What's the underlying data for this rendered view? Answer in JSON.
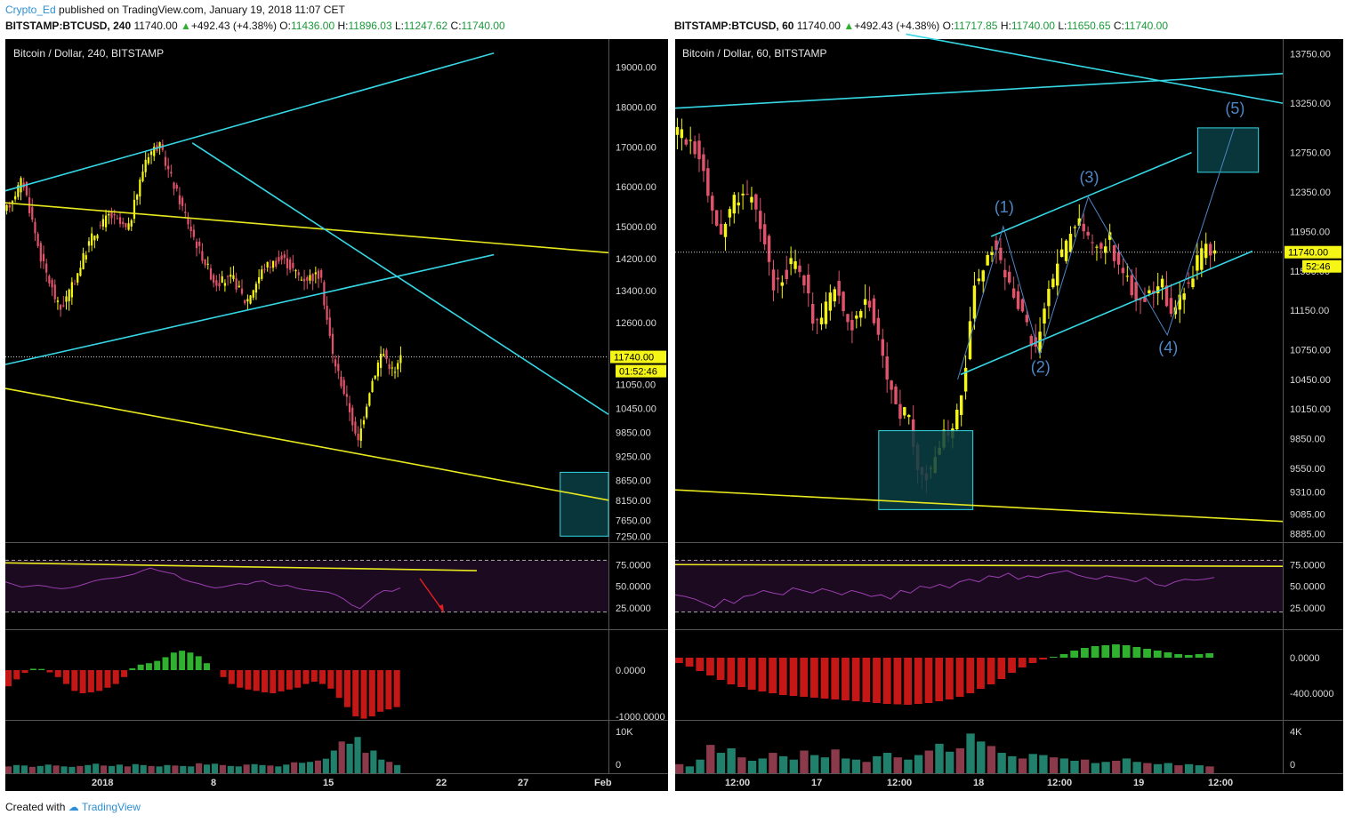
{
  "header": {
    "author": "Crypto_Ed",
    "published": "published on TradingView.com, January 19, 2018 11:07 CET"
  },
  "left": {
    "symbol": "BITSTAMP:BTCUSD, 240",
    "price": "11740.00",
    "change": "+492.43 (+4.38%)",
    "o_label": "O:",
    "o": "11436.00",
    "h_label": "H:",
    "h": "11896.03",
    "l_label": "L:",
    "l": "11247.62",
    "c_label": "C:",
    "c": "11740.00",
    "title": "Bitcoin / Dollar, 240, BITSTAMP",
    "price_tag": "11740.00",
    "timer_tag": "01:52:46",
    "price_ticks": [
      "19000.00",
      "18000.00",
      "17000.00",
      "16000.00",
      "15000.00",
      "14200.00",
      "13400.00",
      "12600.00",
      "11050.00",
      "10450.00",
      "9850.00",
      "9250.00",
      "8650.00",
      "8150.00",
      "7650.00",
      "7250.00"
    ],
    "rsi_ticks": [
      "75.0000",
      "50.0000",
      "25.0000"
    ],
    "macd_ticks": [
      "0.0000",
      "-1000.0000"
    ],
    "vol_ticks": [
      "10K",
      "0"
    ],
    "time_ticks": [
      "2018",
      "8",
      "15",
      "22",
      "27",
      "Feb"
    ]
  },
  "right": {
    "symbol": "BITSTAMP:BTCUSD, 60",
    "price": "11740.00",
    "change": "+492.43 (+4.38%)",
    "o_label": "O:",
    "o": "11717.85",
    "h_label": "H:",
    "h": "11740.00",
    "l_label": "L:",
    "l": "11650.65",
    "c_label": "C:",
    "c": "11740.00",
    "title": "Bitcoin / Dollar, 60, BITSTAMP",
    "price_tag": "11740.00",
    "timer_tag": "52:46",
    "price_ticks": [
      "13750.00",
      "13250.00",
      "12750.00",
      "12350.00",
      "11950.00",
      "11550.00",
      "11150.00",
      "10750.00",
      "10450.00",
      "10150.00",
      "9850.00",
      "9550.00",
      "9310.00",
      "9085.00",
      "8885.00"
    ],
    "rsi_ticks": [
      "75.0000",
      "50.0000",
      "25.0000"
    ],
    "macd_ticks": [
      "0.0000",
      "-400.0000"
    ],
    "vol_ticks": [
      "4K",
      "0"
    ],
    "time_ticks": [
      "12:00",
      "17",
      "12:00",
      "18",
      "12:00",
      "19",
      "12:00"
    ],
    "wave_labels": [
      "(1)",
      "(2)",
      "(3)",
      "(4)",
      "(5)"
    ]
  },
  "footer": {
    "created_with": "Created with",
    "brand": "TradingView"
  },
  "colors": {
    "bg": "#000000",
    "bull": "#f5f516",
    "bear": "#e0536a",
    "trend_cyan": "#35d7e5",
    "trend_yellow": "#e8e81e",
    "rsi": "#9b3fb0",
    "rsi_band": "#1c0a20",
    "macd_pos": "#2fb12f",
    "macd_neg": "#c61717",
    "vol_up": "#21806c",
    "vol_down": "#8a3a4a",
    "wave": "#4f86c6",
    "box": "#0b3f44"
  },
  "chart_data": [
    {
      "type": "candlestick",
      "title": "Bitcoin / Dollar, 240, BITSTAMP",
      "xlabel": "",
      "ylabel": "",
      "ylim": [
        7100,
        19700
      ],
      "last_price": 11740,
      "x_ticks": [
        "2018",
        "8",
        "15",
        "22",
        "27",
        "Feb"
      ],
      "price_path": [
        [
          0,
          15300
        ],
        [
          3,
          16200
        ],
        [
          6,
          14200
        ],
        [
          9,
          12900
        ],
        [
          11,
          13500
        ],
        [
          14,
          14700
        ],
        [
          17,
          15300
        ],
        [
          20,
          14900
        ],
        [
          23,
          16800
        ],
        [
          25,
          17050
        ],
        [
          28,
          15800
        ],
        [
          31,
          14600
        ],
        [
          34,
          13600
        ],
        [
          37,
          13700
        ],
        [
          39,
          13100
        ],
        [
          42,
          14000
        ],
        [
          45,
          14200
        ],
        [
          48,
          13700
        ],
        [
          51,
          13800
        ],
        [
          53,
          11800
        ],
        [
          56,
          10300
        ],
        [
          57,
          9500
        ],
        [
          59,
          10950
        ],
        [
          61,
          11900
        ],
        [
          63,
          11300
        ],
        [
          64,
          11740
        ]
      ],
      "trendlines_price": [
        {
          "color": "yellow",
          "from": [
            0,
            15600
          ],
          "to": [
            100,
            14350
          ]
        },
        {
          "color": "yellow",
          "from": [
            0,
            10950
          ],
          "to": [
            100,
            8150
          ]
        },
        {
          "color": "cyan",
          "from": [
            0,
            15900
          ],
          "to": [
            81,
            19350
          ]
        },
        {
          "color": "cyan",
          "from": [
            0,
            11550
          ],
          "to": [
            81,
            14300
          ]
        },
        {
          "color": "cyan",
          "from": [
            31,
            17100
          ],
          "to": [
            100,
            10300
          ]
        }
      ],
      "zones": [
        {
          "x": [
            92,
            100
          ],
          "y": [
            7250,
            8850
          ]
        }
      ],
      "rsi": {
        "ylim": [
          0,
          100
        ],
        "levels": [
          80,
          20
        ],
        "values": [
          55,
          52,
          49,
          50,
          51,
          50,
          48,
          47,
          48,
          50,
          53,
          56,
          58,
          59,
          60,
          62,
          64,
          68,
          71,
          68,
          66,
          64,
          58,
          55,
          53,
          50,
          48,
          49,
          51,
          53,
          52,
          55,
          56,
          52,
          50,
          51,
          48,
          46,
          45,
          44,
          43,
          40,
          35,
          28,
          24,
          32,
          40,
          45,
          44,
          48
        ]
      },
      "macd": {
        "values": [
          -350,
          -200,
          -60,
          30,
          25,
          -50,
          -150,
          -300,
          -450,
          -500,
          -480,
          -450,
          -380,
          -300,
          -150,
          40,
          120,
          150,
          200,
          280,
          380,
          420,
          380,
          300,
          150,
          0,
          -150,
          -300,
          -380,
          -420,
          -450,
          -480,
          -500,
          -460,
          -420,
          -380,
          -300,
          -250,
          -300,
          -400,
          -600,
          -800,
          -1000,
          -1050,
          -1000,
          -900,
          -850,
          -800
        ]
      },
      "volume": {
        "max": 10000,
        "values": [
          1500,
          1800,
          1700,
          1400,
          1600,
          1900,
          1700,
          1500,
          1400,
          1600,
          1800,
          2100,
          1700,
          1600,
          1900,
          1500,
          2000,
          1800,
          1600,
          1500,
          1800,
          1700,
          1600,
          1500,
          2200,
          1900,
          2100,
          1800,
          1600,
          1500,
          1900,
          2000,
          1800,
          1700,
          1500,
          1900,
          2400,
          2300,
          2500,
          2800,
          3200,
          5000,
          7000,
          6500,
          8000,
          4500,
          5000,
          3000,
          2500,
          1800
        ]
      }
    },
    {
      "type": "candlestick",
      "title": "Bitcoin / Dollar, 60, BITSTAMP",
      "xlabel": "",
      "ylabel": "",
      "ylim": [
        8800,
        13900
      ],
      "last_price": 11740,
      "x_ticks": [
        "12:00",
        "17",
        "12:00",
        "18",
        "12:00",
        "19",
        "12:00"
      ],
      "price_path": [
        [
          0,
          12950
        ],
        [
          3,
          12900
        ],
        [
          5,
          12750
        ],
        [
          7,
          12300
        ],
        [
          9,
          11850
        ],
        [
          11,
          12250
        ],
        [
          13,
          12350
        ],
        [
          15,
          12250
        ],
        [
          17,
          11950
        ],
        [
          19,
          11400
        ],
        [
          21,
          11500
        ],
        [
          23,
          11650
        ],
        [
          25,
          11450
        ],
        [
          27,
          10950
        ],
        [
          29,
          11150
        ],
        [
          31,
          11450
        ],
        [
          33,
          11000
        ],
        [
          35,
          11050
        ],
        [
          37,
          11300
        ],
        [
          39,
          10850
        ],
        [
          41,
          10450
        ],
        [
          43,
          10100
        ],
        [
          45,
          10100
        ],
        [
          46,
          9650
        ],
        [
          48,
          9450
        ],
        [
          50,
          9650
        ],
        [
          52,
          9950
        ],
        [
          53,
          9850
        ],
        [
          55,
          10300
        ],
        [
          57,
          11350
        ],
        [
          59,
          11550
        ],
        [
          61,
          11850
        ],
        [
          63,
          11500
        ],
        [
          65,
          11300
        ],
        [
          67,
          11000
        ],
        [
          69,
          10750
        ],
        [
          71,
          11250
        ],
        [
          73,
          11600
        ],
        [
          75,
          11850
        ],
        [
          77,
          12050
        ],
        [
          79,
          11900
        ],
        [
          81,
          11750
        ],
        [
          83,
          11900
        ],
        [
          85,
          11500
        ],
        [
          87,
          11400
        ],
        [
          89,
          11200
        ],
        [
          91,
          11350
        ],
        [
          93,
          11400
        ],
        [
          95,
          11100
        ],
        [
          97,
          11350
        ],
        [
          99,
          11550
        ],
        [
          101,
          11800
        ],
        [
          102,
          11750
        ],
        [
          103,
          11740
        ]
      ],
      "trendlines_price": [
        {
          "color": "yellow",
          "from": [
            0,
            9330
          ],
          "to": [
            100,
            9010
          ]
        },
        {
          "color": "cyan",
          "from": [
            0,
            13200
          ],
          "to": [
            100,
            13550
          ]
        },
        {
          "color": "cyan",
          "from": [
            38,
            13950
          ],
          "to": [
            100,
            13250
          ]
        },
        {
          "color": "cyan",
          "from": [
            47,
            10500
          ],
          "to": [
            95,
            11750
          ]
        },
        {
          "color": "cyan",
          "from": [
            52,
            11900
          ],
          "to": [
            85,
            12750
          ]
        }
      ],
      "zones": [
        {
          "x": [
            33.5,
            49
          ],
          "y": [
            9130,
            9930
          ]
        },
        {
          "x": [
            86,
            96
          ],
          "y": [
            12550,
            13000
          ]
        }
      ],
      "elliott_waves": [
        {
          "label": "(1)",
          "x": 54,
          "price": 12000
        },
        {
          "label": "(2)",
          "x": 60,
          "price": 10700
        },
        {
          "label": "(3)",
          "x": 68,
          "price": 12300
        },
        {
          "label": "(4)",
          "x": 81,
          "price": 10900
        },
        {
          "label": "(5)",
          "x": 92,
          "price": 13000
        }
      ],
      "rsi": {
        "ylim": [
          0,
          100
        ],
        "levels": [
          80,
          20
        ],
        "values": [
          40,
          38,
          35,
          30,
          25,
          35,
          30,
          38,
          40,
          45,
          42,
          40,
          48,
          45,
          42,
          47,
          44,
          40,
          45,
          42,
          38,
          40,
          35,
          45,
          42,
          50,
          48,
          52,
          48,
          55,
          58,
          55,
          62,
          60,
          65,
          58,
          62,
          60,
          64,
          66,
          68,
          63,
          60,
          58,
          62,
          60,
          58,
          55,
          60,
          52,
          50,
          55,
          58,
          57,
          58,
          60
        ]
      },
      "macd": {
        "values": [
          -60,
          -100,
          -150,
          -200,
          -250,
          -300,
          -330,
          -360,
          -380,
          -400,
          -420,
          -430,
          -440,
          -450,
          -460,
          -470,
          -480,
          -490,
          -500,
          -510,
          -520,
          -525,
          -530,
          -520,
          -510,
          -490,
          -470,
          -440,
          -400,
          -350,
          -300,
          -240,
          -170,
          -110,
          -60,
          -20,
          10,
          40,
          80,
          110,
          130,
          140,
          150,
          140,
          120,
          100,
          80,
          60,
          40,
          30,
          40,
          50
        ]
      },
      "volume": {
        "max": 4000,
        "values": [
          800,
          600,
          1200,
          2500,
          1800,
          2200,
          1400,
          1100,
          1300,
          1800,
          1500,
          1200,
          2000,
          1600,
          1400,
          2100,
          1300,
          1200,
          1000,
          1500,
          1800,
          1400,
          1200,
          1600,
          2000,
          2600,
          1900,
          2200,
          3500,
          2800,
          2400,
          1800,
          1500,
          1300,
          1700,
          1600,
          1400,
          1300,
          1100,
          1200,
          900,
          1000,
          1100,
          1300,
          1000,
          900,
          800,
          900,
          700,
          800,
          700,
          600
        ]
      }
    }
  ]
}
